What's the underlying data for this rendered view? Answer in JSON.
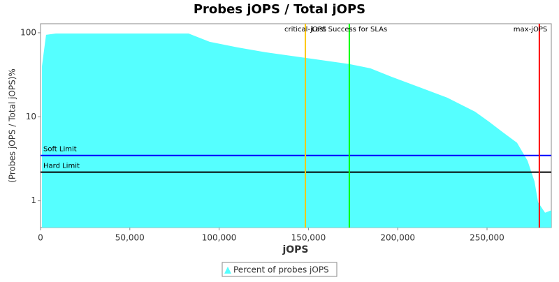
{
  "chart_data": {
    "type": "area",
    "title": "Probes jOPS / Total jOPS",
    "x_label": "jOPS",
    "y_label": "(Probes jOPS / Total jOPS)%",
    "log_y": true,
    "legend_position": "bottom",
    "xlim": [
      0,
      286000
    ],
    "ylim": [
      0.48,
      128
    ],
    "xticks": [
      {
        "value": 0,
        "label": "0"
      },
      {
        "value": 50000,
        "label": "50,000"
      },
      {
        "value": 100000,
        "label": "100,000"
      },
      {
        "value": 150000,
        "label": "150,000"
      },
      {
        "value": 200000,
        "label": "200,000"
      },
      {
        "value": 250000,
        "label": "250,000"
      }
    ],
    "yticks": [
      1,
      10,
      100
    ],
    "series": [
      {
        "name": "Percent of probes jOPS",
        "color": "#55ffff",
        "x": [
          800,
          3100,
          8600,
          82900,
          94700,
          110300,
          126000,
          148300,
          172900,
          184700,
          196400,
          212100,
          227700,
          243300,
          251200,
          259000,
          266800,
          272700,
          276600,
          278600,
          282500,
          286000
        ],
        "values": [
          40,
          94.5,
          98,
          98,
          78,
          67,
          58.6,
          50.2,
          42.4,
          37.7,
          30,
          22.5,
          16.9,
          11.5,
          8.7,
          6.5,
          4.9,
          3.0,
          1.7,
          0.96,
          0.72,
          0.77
        ]
      }
    ],
    "horizontal_lines": [
      {
        "label": "Soft Limit",
        "value": 3.46,
        "color": "#0000ff"
      },
      {
        "label": "Hard Limit",
        "value": 2.19,
        "color": "#000000"
      }
    ],
    "vertical_lines": [
      {
        "label": "critical-jOPS",
        "value": 148300,
        "color": "#ffc800"
      },
      {
        "label": "Last Success for SLAs",
        "value": 172900,
        "color": "#00ff00"
      },
      {
        "label": "max-jOPS",
        "value": 279300,
        "color": "#ff0000"
      }
    ]
  }
}
